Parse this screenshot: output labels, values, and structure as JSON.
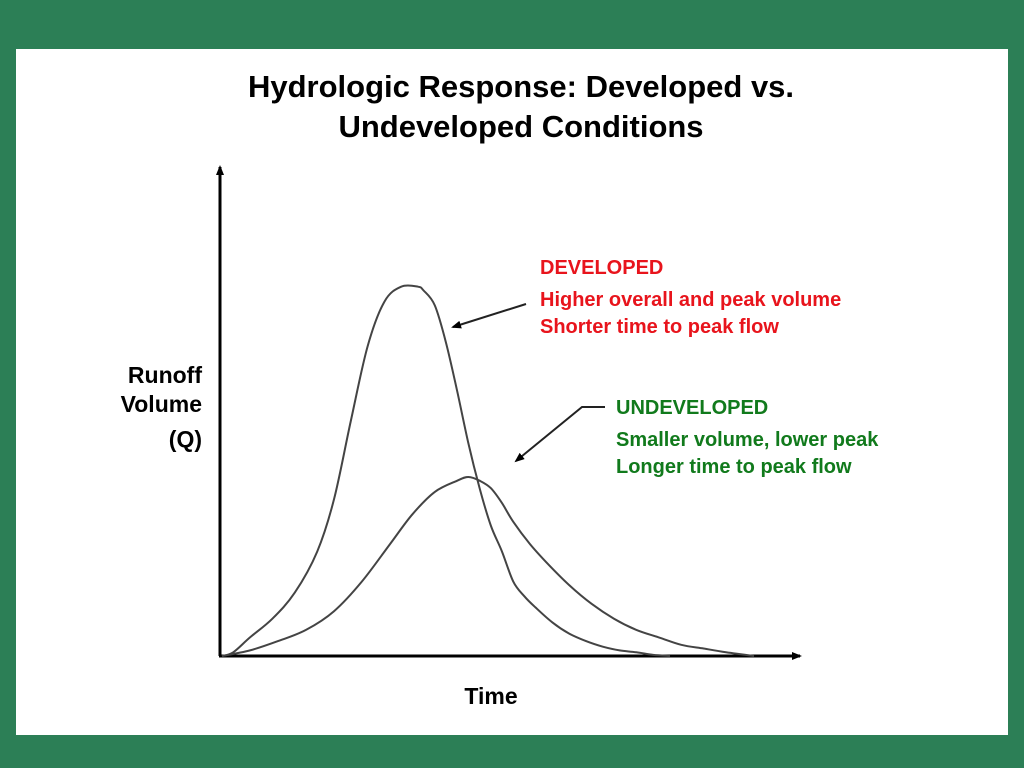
{
  "slide": {
    "title_line1": "Hydrologic Response:  Developed vs.",
    "title_line2": "Undeveloped Conditions",
    "developed_note": {
      "heading": "DEVELOPED",
      "line1": "Higher overall and peak volume",
      "line2": "Shorter time to peak flow",
      "color": "#e8141c"
    },
    "undeveloped_note": {
      "heading": "UNDEVELOPED",
      "line1": "Smaller volume, lower peak",
      "line2": "Longer time to peak flow",
      "color": "#117a1c"
    },
    "colors": {
      "frame": "#2c7f56",
      "slide": "#ffffff",
      "curve": "#444444"
    }
  },
  "chart_data": {
    "type": "line",
    "title": "Hydrologic Response:  Developed vs. Undeveloped Conditions",
    "xlabel": "Time",
    "ylabel_line1": "Runoff",
    "ylabel_line2": "Volume",
    "ylabel_unit": "(Q)",
    "xlim": [
      0,
      100
    ],
    "ylim": [
      0,
      100
    ],
    "grid": false,
    "series": [
      {
        "key": "developed",
        "x": [
          0,
          2,
          5,
          9,
          13,
          17,
          20,
          23,
          26,
          29,
          32,
          35,
          36,
          38,
          40,
          42,
          44,
          46,
          48,
          50,
          52,
          54,
          56,
          59,
          62,
          65,
          68,
          71,
          74,
          77,
          80
        ],
        "values": [
          0,
          1,
          5,
          10,
          17,
          28,
          42,
          63,
          83,
          95,
          99,
          99,
          98,
          94,
          84,
          71,
          57,
          45,
          35,
          28,
          20,
          16,
          13,
          9,
          6,
          4,
          2.5,
          1.5,
          1,
          0.3,
          0
        ]
      },
      {
        "key": "undeveloped",
        "x": [
          0,
          5,
          10,
          15,
          20,
          25,
          30,
          34,
          38,
          42,
          44,
          46,
          48,
          50,
          52,
          55,
          58,
          62,
          66,
          70,
          74,
          78,
          82,
          86,
          90,
          95
        ],
        "values": [
          0,
          1.5,
          4,
          7,
          12,
          20,
          30,
          38,
          44,
          47,
          48,
          47,
          45,
          41,
          36,
          30,
          25,
          19,
          14,
          10,
          7,
          5,
          3,
          2,
          1,
          0
        ]
      }
    ]
  }
}
